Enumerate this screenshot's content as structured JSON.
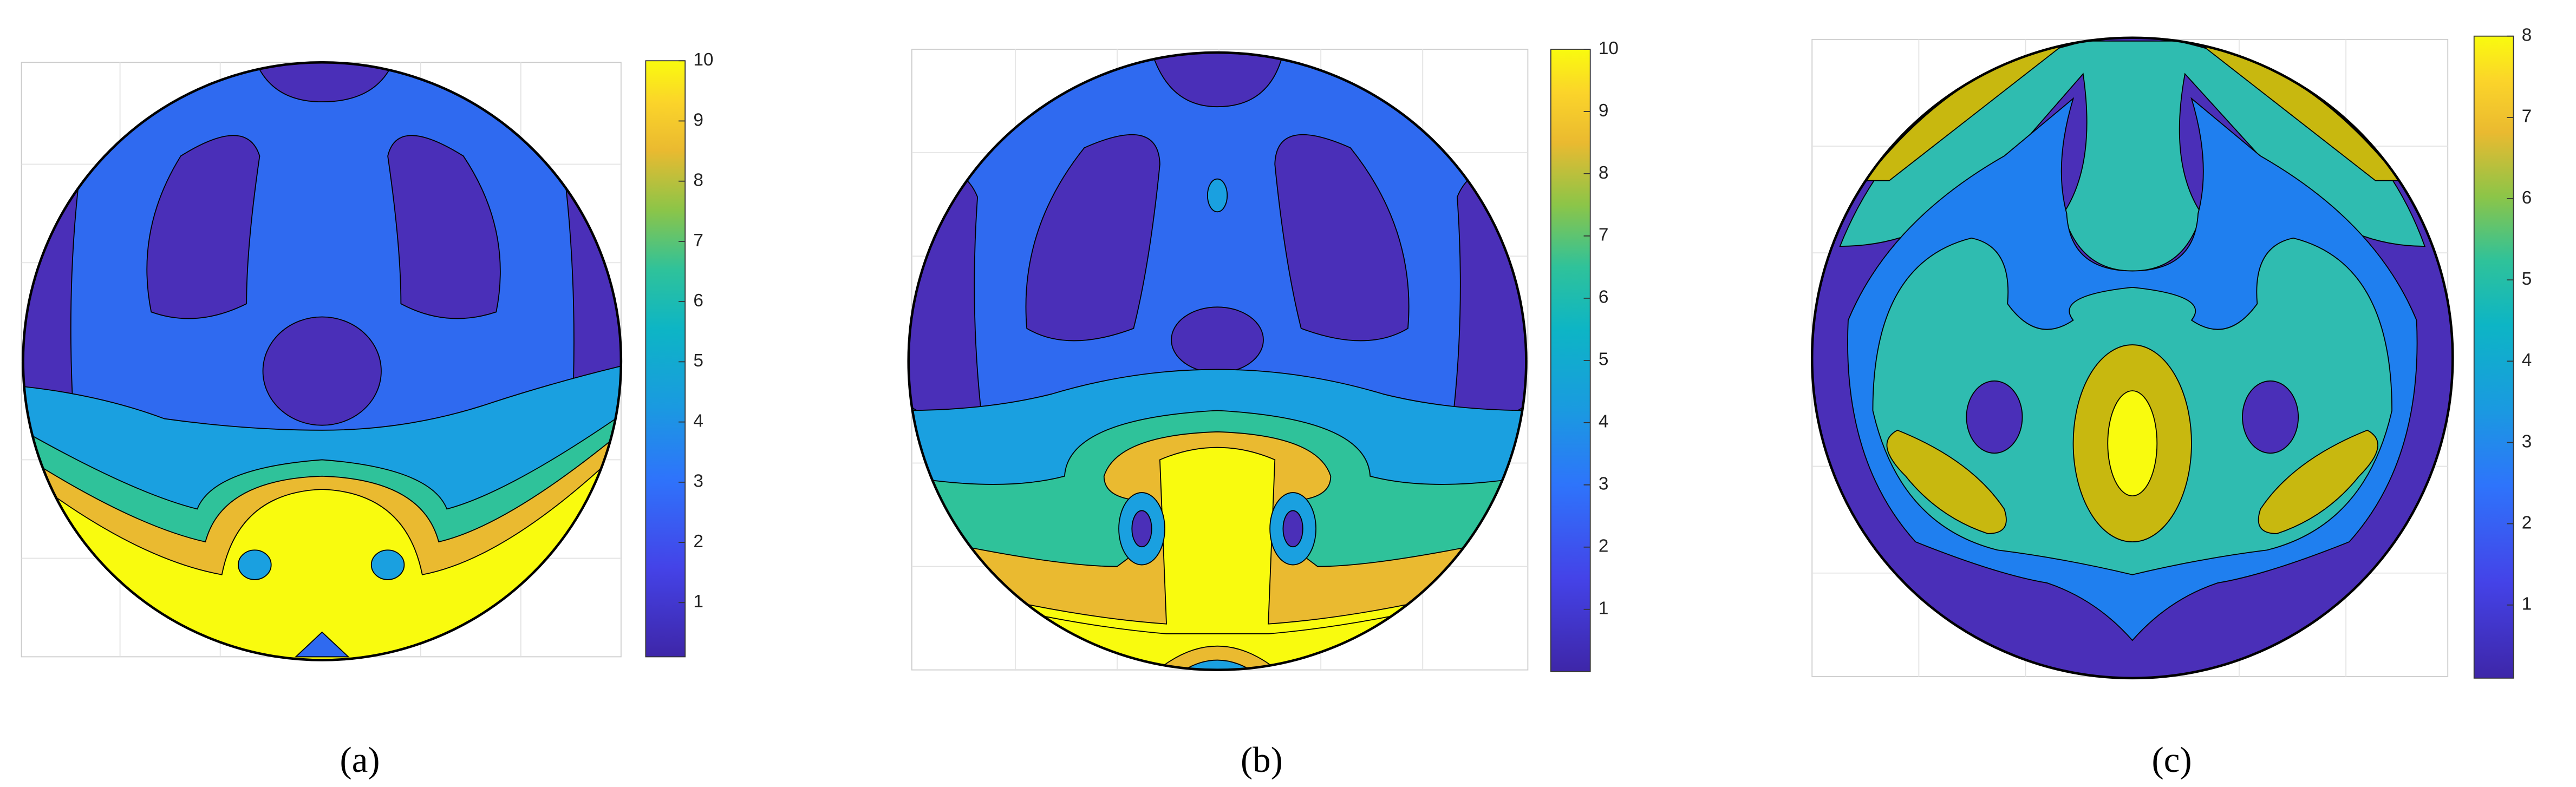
{
  "chart_data": [
    {
      "type": "contour",
      "caption": "(a)",
      "clim": [
        0.1,
        10
      ],
      "cticks": [
        1,
        2,
        3,
        4,
        5,
        6,
        7,
        8,
        9,
        10
      ]
    },
    {
      "type": "contour",
      "caption": "(b)",
      "clim": [
        0,
        10
      ],
      "cticks": [
        1,
        2,
        3,
        4,
        5,
        6,
        7,
        8,
        9,
        10
      ]
    },
    {
      "type": "contour",
      "caption": "(c)",
      "clim": [
        0.1,
        8
      ],
      "cticks": [
        1,
        2,
        3,
        4,
        5,
        6,
        7,
        8
      ]
    }
  ]
}
